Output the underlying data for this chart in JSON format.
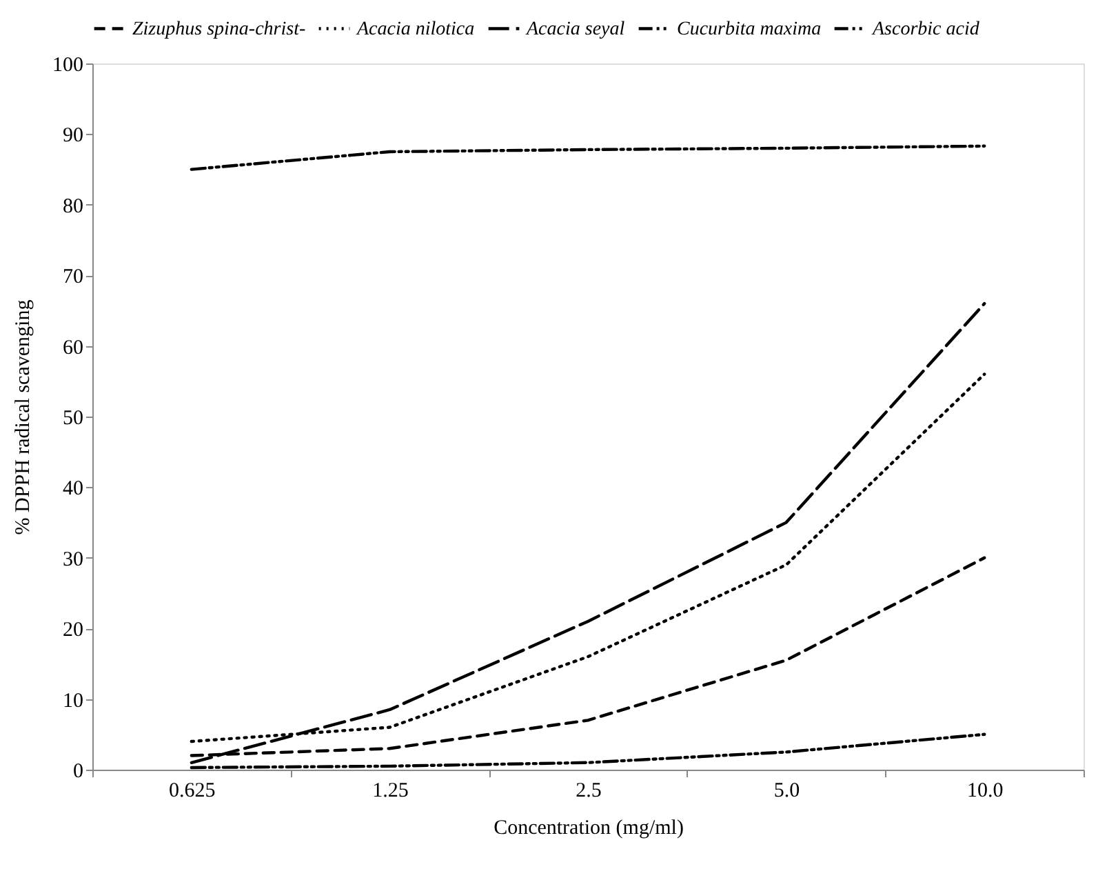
{
  "chart_data": {
    "type": "line",
    "xlabel": "Concentration  (mg/ml)",
    "ylabel": "% DPPH radical  scavenging",
    "categories": [
      "0.625",
      "1.25",
      "2.5",
      "5.0",
      "10.0"
    ],
    "series": [
      {
        "name": "Zizuphus spina-christ-",
        "color": "#000000",
        "line_style": "dashed",
        "values": [
          2,
          3,
          7,
          15.5,
          30
        ]
      },
      {
        "name": "Acacia nilotica",
        "color": "#000000",
        "line_style": "dotted",
        "values": [
          4,
          6,
          16,
          29,
          56
        ]
      },
      {
        "name": "Acacia seyal",
        "color": "#000000",
        "line_style": "dashed",
        "values": [
          1,
          8.5,
          21,
          35,
          66
        ]
      },
      {
        "name": "Cucurbita maxima",
        "color": "#000000",
        "line_style": "dashdot",
        "values": [
          0.3,
          0.5,
          1,
          2.5,
          5
        ]
      },
      {
        "name": "Ascorbic acid",
        "color": "#000000",
        "line_style": "dashdot",
        "values": [
          85,
          87.5,
          87.8,
          88,
          88.3
        ]
      }
    ],
    "ylim": [
      0,
      100
    ],
    "yticks": [
      0,
      10,
      20,
      30,
      40,
      50,
      60,
      70,
      80,
      90,
      100
    ],
    "grid": false,
    "legend": "top",
    "marker": "none"
  }
}
